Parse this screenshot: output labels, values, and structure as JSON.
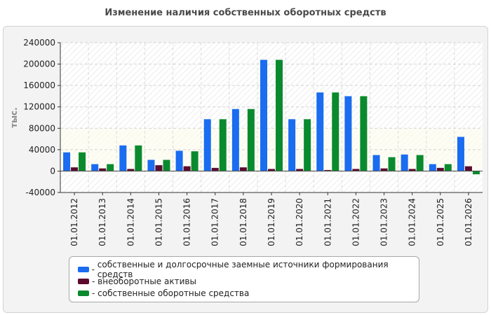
{
  "title": "Изменение наличия собственных оборотных средств",
  "legend_prefix": "- ",
  "chart_data": {
    "type": "bar",
    "title": "Изменение наличия собственных оборотных средств",
    "ylabel": "тыс.",
    "xlabel": "",
    "ylim": [
      -40000,
      240000
    ],
    "yticks": [
      -40000,
      0,
      40000,
      80000,
      120000,
      160000,
      200000,
      240000
    ],
    "grid": true,
    "legend_position": "bottom",
    "categories": [
      "01.01.2012",
      "01.01.2013",
      "01.01.2014",
      "01.01.2015",
      "01.01.2016",
      "01.01.2017",
      "01.01.2018",
      "01.01.2019",
      "01.01.2020",
      "01.01.2021",
      "01.01.2022",
      "01.01.2023",
      "01.01.2024",
      "01.01.2025",
      "01.01.2026"
    ],
    "series": [
      {
        "name": "собственные и долгосрочные заемные источники формирования средств",
        "color": "#1a6cf0",
        "values": [
          35000,
          13000,
          48000,
          21000,
          38000,
          97000,
          116000,
          208000,
          97000,
          147000,
          140000,
          30000,
          31000,
          13000,
          64000
        ]
      },
      {
        "name": "внеоборотные активы",
        "color": "#5c0a2e",
        "values": [
          7000,
          5000,
          4000,
          11000,
          9000,
          6000,
          7000,
          4000,
          4000,
          2000,
          4000,
          5000,
          4000,
          6000,
          9000
        ]
      },
      {
        "name": "собственные оборотные средства",
        "color": "#0a8a2e",
        "values": [
          35000,
          13000,
          48000,
          21000,
          37000,
          97000,
          116000,
          208000,
          97000,
          147000,
          140000,
          26000,
          30000,
          13000,
          -6000
        ]
      }
    ]
  }
}
